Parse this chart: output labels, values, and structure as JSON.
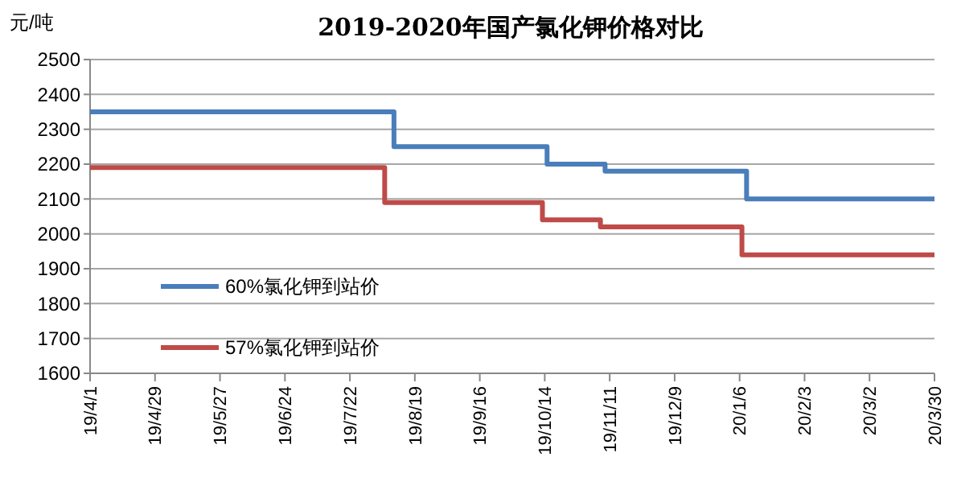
{
  "chart_data": {
    "type": "step",
    "title": "2019-2020年国产氯化钾价格对比",
    "ylabel": "元/吨",
    "ylim": [
      1600,
      2500
    ],
    "yticks": [
      1600,
      1700,
      1800,
      1900,
      2000,
      2100,
      2200,
      2300,
      2400,
      2500
    ],
    "xlim": [
      "2019-04-01",
      "2020-03-30"
    ],
    "xticks": [
      {
        "value": "2019-04-01",
        "label": "19/4/1"
      },
      {
        "value": "2019-04-29",
        "label": "19/4/29"
      },
      {
        "value": "2019-05-27",
        "label": "19/5/27"
      },
      {
        "value": "2019-06-24",
        "label": "19/6/24"
      },
      {
        "value": "2019-07-22",
        "label": "19/7/22"
      },
      {
        "value": "2019-08-19",
        "label": "19/8/19"
      },
      {
        "value": "2019-09-16",
        "label": "19/9/16"
      },
      {
        "value": "2019-10-14",
        "label": "19/10/14"
      },
      {
        "value": "2019-11-11",
        "label": "19/11/11"
      },
      {
        "value": "2019-12-09",
        "label": "19/12/9"
      },
      {
        "value": "2020-01-06",
        "label": "20/1/6"
      },
      {
        "value": "2020-02-03",
        "label": "20/2/3"
      },
      {
        "value": "2020-03-02",
        "label": "20/3/2"
      },
      {
        "value": "2020-03-30",
        "label": "20/3/30"
      }
    ],
    "grid": "y",
    "legend": "left",
    "series": [
      {
        "name": "60%氯化钾到站价",
        "color": "#4a7ebb",
        "x": [
          "2019-04-01",
          "2019-08-10",
          "2019-10-15",
          "2019-11-09",
          "2020-01-09",
          "2020-03-30"
        ],
        "values": [
          2350,
          2250,
          2200,
          2180,
          2100,
          2100
        ]
      },
      {
        "name": "57%氯化钾到站价",
        "color": "#be4b48",
        "x": [
          "2019-04-01",
          "2019-08-06",
          "2019-10-13",
          "2019-11-07",
          "2020-01-07",
          "2020-03-30"
        ],
        "values": [
          2190,
          2090,
          2040,
          2020,
          1940,
          1940
        ]
      }
    ]
  }
}
